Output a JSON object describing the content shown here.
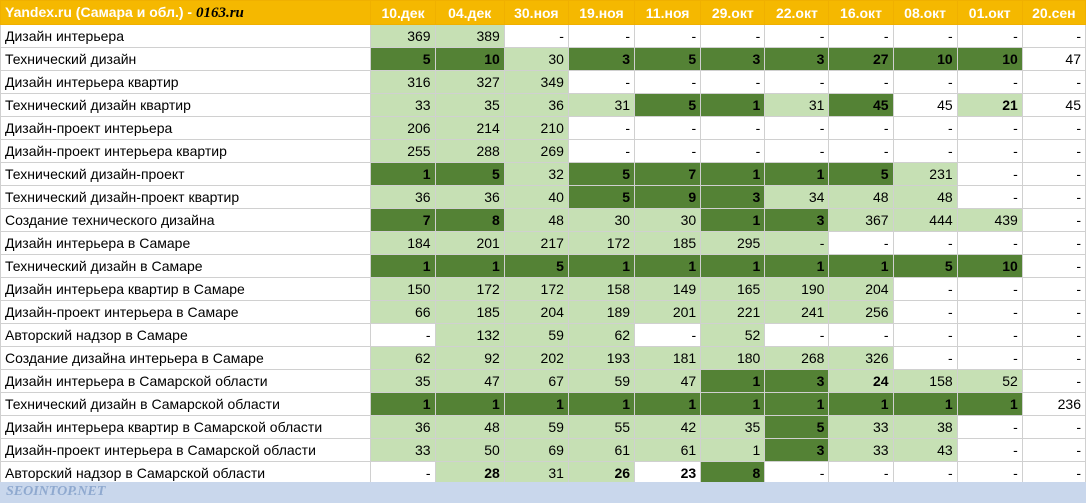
{
  "header": {
    "engine": "Yandex.ru (Самара и обл.)",
    "separator": " - ",
    "site": "0163.ru",
    "dates": [
      "10.дек",
      "04.дек",
      "30.ноя",
      "19.ноя",
      "11.ноя",
      "29.окт",
      "22.окт",
      "16.окт",
      "08.окт",
      "01.окт",
      "20.сен"
    ]
  },
  "rows": [
    {
      "query": "Дизайн интерьера",
      "values": [
        "369",
        "389",
        "-",
        "-",
        "-",
        "-",
        "-",
        "-",
        "-",
        "-",
        "-"
      ]
    },
    {
      "query": "Технический дизайн",
      "values": [
        "5",
        "10",
        "30",
        "3",
        "5",
        "3",
        "3",
        "27",
        "10",
        "10",
        "47"
      ]
    },
    {
      "query": "Дизайн интерьера квартир",
      "values": [
        "316",
        "327",
        "349",
        "-",
        "-",
        "-",
        "-",
        "-",
        "-",
        "-",
        "-"
      ]
    },
    {
      "query": "Технический дизайн квартир",
      "values": [
        "33",
        "35",
        "36",
        "31",
        "5",
        "1",
        "31",
        "45",
        "45",
        "21",
        "45"
      ]
    },
    {
      "query": "Дизайн-проект интерьера",
      "values": [
        "206",
        "214",
        "210",
        "-",
        "-",
        "-",
        "-",
        "-",
        "-",
        "-",
        "-"
      ]
    },
    {
      "query": "Дизайн-проект интерьера квартир",
      "values": [
        "255",
        "288",
        "269",
        "-",
        "-",
        "-",
        "-",
        "-",
        "-",
        "-",
        "-"
      ]
    },
    {
      "query": "Технический дизайн-проект",
      "values": [
        "1",
        "5",
        "32",
        "5",
        "7",
        "1",
        "1",
        "5",
        "231",
        "-",
        "-"
      ]
    },
    {
      "query": "Технический дизайн-проект квартир",
      "values": [
        "36",
        "36",
        "40",
        "5",
        "9",
        "3",
        "34",
        "48",
        "48",
        "-",
        "-"
      ]
    },
    {
      "query": "Создание технического дизайна",
      "values": [
        "7",
        "8",
        "48",
        "30",
        "30",
        "1",
        "3",
        "367",
        "444",
        "439",
        "-"
      ]
    },
    {
      "query": "Дизайн интерьера в Самаре",
      "values": [
        "184",
        "201",
        "217",
        "172",
        "185",
        "295",
        "-",
        "-",
        "-",
        "-",
        "-"
      ]
    },
    {
      "query": "Технический дизайн в Самаре",
      "values": [
        "1",
        "1",
        "5",
        "1",
        "1",
        "1",
        "1",
        "1",
        "5",
        "10",
        "-"
      ]
    },
    {
      "query": "Дизайн интерьера квартир в Самаре",
      "values": [
        "150",
        "172",
        "172",
        "158",
        "149",
        "165",
        "190",
        "204",
        "-",
        "-",
        "-"
      ]
    },
    {
      "query": "Дизайн-проект интерьера в Самаре",
      "values": [
        "66",
        "185",
        "204",
        "189",
        "201",
        "221",
        "241",
        "256",
        "-",
        "-",
        "-"
      ]
    },
    {
      "query": "Авторский надзор в Самаре",
      "values": [
        "-",
        "132",
        "59",
        "62",
        "-",
        "52",
        "-",
        "-",
        "-",
        "-",
        "-"
      ]
    },
    {
      "query": "Создание дизайна интерьера в Самаре",
      "values": [
        "62",
        "92",
        "202",
        "193",
        "181",
        "180",
        "268",
        "326",
        "-",
        "-",
        "-"
      ]
    },
    {
      "query": "Дизайн интерьера в Самарской области",
      "values": [
        "35",
        "47",
        "67",
        "59",
        "47",
        "1",
        "3",
        "24",
        "158",
        "52",
        "-"
      ]
    },
    {
      "query": "Технический дизайн в Самарской области",
      "values": [
        "1",
        "1",
        "1",
        "1",
        "1",
        "1",
        "1",
        "1",
        "1",
        "1",
        "236"
      ]
    },
    {
      "query": "Дизайн интерьера квартир в Самарской области",
      "values": [
        "36",
        "48",
        "59",
        "55",
        "42",
        "35",
        "5",
        "33",
        "38",
        "-",
        "-"
      ]
    },
    {
      "query": "Дизайн-проект интерьера в Самарской области",
      "values": [
        "33",
        "50",
        "69",
        "61",
        "61",
        "1",
        "3",
        "33",
        "43",
        "-",
        "-"
      ]
    },
    {
      "query": "Авторский надзор в Самарской области",
      "values": [
        "-",
        "28",
        "31",
        "26",
        "23",
        "8",
        "-",
        "-",
        "-",
        "-",
        "-"
      ]
    }
  ],
  "shading": [
    "11000000000",
    "22122222220",
    "11100000000",
    "11112212010",
    "11100000000",
    "11100000000",
    "22122222100",
    "11122211100",
    "22111221110",
    "11111110000",
    "22222222220",
    "11111111000",
    "11111111000",
    "01110100000",
    "11111111000",
    "11111221110",
    "22222222220",
    "11111121100",
    "11111121100",
    "01110200000"
  ],
  "bold_cells": [
    [
      1,
      7
    ],
    [
      3,
      9
    ],
    [
      15,
      7
    ],
    [
      19,
      1
    ],
    [
      19,
      3
    ],
    [
      19,
      4
    ]
  ],
  "colors": {
    "header": "#f5b800",
    "light_green": "#c6e0b4",
    "dark_green": "#548235",
    "footer": "#c9d7ec"
  },
  "footer": {
    "watermark": "SEOINTOP.NET"
  }
}
